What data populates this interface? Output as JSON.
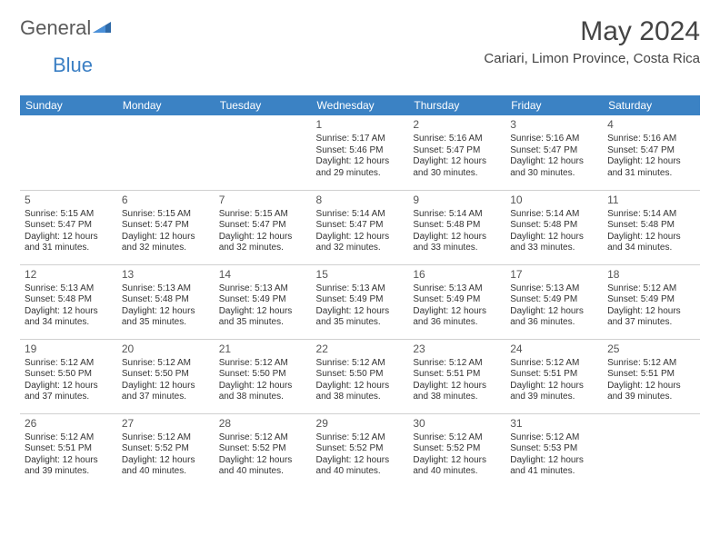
{
  "logo": {
    "text_general": "General",
    "text_blue": "Blue"
  },
  "title": "May 2024",
  "location": "Cariari, Limon Province, Costa Rica",
  "colors": {
    "header_bg": "#3b82c4",
    "header_text": "#ffffff",
    "border": "#d0d0d0",
    "logo_gray": "#5a5a5a",
    "logo_blue": "#3b7fc4"
  },
  "day_headers": [
    "Sunday",
    "Monday",
    "Tuesday",
    "Wednesday",
    "Thursday",
    "Friday",
    "Saturday"
  ],
  "weeks": [
    [
      null,
      null,
      null,
      {
        "n": "1",
        "sr": "Sunrise: 5:17 AM",
        "ss": "Sunset: 5:46 PM",
        "dl1": "Daylight: 12 hours",
        "dl2": "and 29 minutes."
      },
      {
        "n": "2",
        "sr": "Sunrise: 5:16 AM",
        "ss": "Sunset: 5:47 PM",
        "dl1": "Daylight: 12 hours",
        "dl2": "and 30 minutes."
      },
      {
        "n": "3",
        "sr": "Sunrise: 5:16 AM",
        "ss": "Sunset: 5:47 PM",
        "dl1": "Daylight: 12 hours",
        "dl2": "and 30 minutes."
      },
      {
        "n": "4",
        "sr": "Sunrise: 5:16 AM",
        "ss": "Sunset: 5:47 PM",
        "dl1": "Daylight: 12 hours",
        "dl2": "and 31 minutes."
      }
    ],
    [
      {
        "n": "5",
        "sr": "Sunrise: 5:15 AM",
        "ss": "Sunset: 5:47 PM",
        "dl1": "Daylight: 12 hours",
        "dl2": "and 31 minutes."
      },
      {
        "n": "6",
        "sr": "Sunrise: 5:15 AM",
        "ss": "Sunset: 5:47 PM",
        "dl1": "Daylight: 12 hours",
        "dl2": "and 32 minutes."
      },
      {
        "n": "7",
        "sr": "Sunrise: 5:15 AM",
        "ss": "Sunset: 5:47 PM",
        "dl1": "Daylight: 12 hours",
        "dl2": "and 32 minutes."
      },
      {
        "n": "8",
        "sr": "Sunrise: 5:14 AM",
        "ss": "Sunset: 5:47 PM",
        "dl1": "Daylight: 12 hours",
        "dl2": "and 32 minutes."
      },
      {
        "n": "9",
        "sr": "Sunrise: 5:14 AM",
        "ss": "Sunset: 5:48 PM",
        "dl1": "Daylight: 12 hours",
        "dl2": "and 33 minutes."
      },
      {
        "n": "10",
        "sr": "Sunrise: 5:14 AM",
        "ss": "Sunset: 5:48 PM",
        "dl1": "Daylight: 12 hours",
        "dl2": "and 33 minutes."
      },
      {
        "n": "11",
        "sr": "Sunrise: 5:14 AM",
        "ss": "Sunset: 5:48 PM",
        "dl1": "Daylight: 12 hours",
        "dl2": "and 34 minutes."
      }
    ],
    [
      {
        "n": "12",
        "sr": "Sunrise: 5:13 AM",
        "ss": "Sunset: 5:48 PM",
        "dl1": "Daylight: 12 hours",
        "dl2": "and 34 minutes."
      },
      {
        "n": "13",
        "sr": "Sunrise: 5:13 AM",
        "ss": "Sunset: 5:48 PM",
        "dl1": "Daylight: 12 hours",
        "dl2": "and 35 minutes."
      },
      {
        "n": "14",
        "sr": "Sunrise: 5:13 AM",
        "ss": "Sunset: 5:49 PM",
        "dl1": "Daylight: 12 hours",
        "dl2": "and 35 minutes."
      },
      {
        "n": "15",
        "sr": "Sunrise: 5:13 AM",
        "ss": "Sunset: 5:49 PM",
        "dl1": "Daylight: 12 hours",
        "dl2": "and 35 minutes."
      },
      {
        "n": "16",
        "sr": "Sunrise: 5:13 AM",
        "ss": "Sunset: 5:49 PM",
        "dl1": "Daylight: 12 hours",
        "dl2": "and 36 minutes."
      },
      {
        "n": "17",
        "sr": "Sunrise: 5:13 AM",
        "ss": "Sunset: 5:49 PM",
        "dl1": "Daylight: 12 hours",
        "dl2": "and 36 minutes."
      },
      {
        "n": "18",
        "sr": "Sunrise: 5:12 AM",
        "ss": "Sunset: 5:49 PM",
        "dl1": "Daylight: 12 hours",
        "dl2": "and 37 minutes."
      }
    ],
    [
      {
        "n": "19",
        "sr": "Sunrise: 5:12 AM",
        "ss": "Sunset: 5:50 PM",
        "dl1": "Daylight: 12 hours",
        "dl2": "and 37 minutes."
      },
      {
        "n": "20",
        "sr": "Sunrise: 5:12 AM",
        "ss": "Sunset: 5:50 PM",
        "dl1": "Daylight: 12 hours",
        "dl2": "and 37 minutes."
      },
      {
        "n": "21",
        "sr": "Sunrise: 5:12 AM",
        "ss": "Sunset: 5:50 PM",
        "dl1": "Daylight: 12 hours",
        "dl2": "and 38 minutes."
      },
      {
        "n": "22",
        "sr": "Sunrise: 5:12 AM",
        "ss": "Sunset: 5:50 PM",
        "dl1": "Daylight: 12 hours",
        "dl2": "and 38 minutes."
      },
      {
        "n": "23",
        "sr": "Sunrise: 5:12 AM",
        "ss": "Sunset: 5:51 PM",
        "dl1": "Daylight: 12 hours",
        "dl2": "and 38 minutes."
      },
      {
        "n": "24",
        "sr": "Sunrise: 5:12 AM",
        "ss": "Sunset: 5:51 PM",
        "dl1": "Daylight: 12 hours",
        "dl2": "and 39 minutes."
      },
      {
        "n": "25",
        "sr": "Sunrise: 5:12 AM",
        "ss": "Sunset: 5:51 PM",
        "dl1": "Daylight: 12 hours",
        "dl2": "and 39 minutes."
      }
    ],
    [
      {
        "n": "26",
        "sr": "Sunrise: 5:12 AM",
        "ss": "Sunset: 5:51 PM",
        "dl1": "Daylight: 12 hours",
        "dl2": "and 39 minutes."
      },
      {
        "n": "27",
        "sr": "Sunrise: 5:12 AM",
        "ss": "Sunset: 5:52 PM",
        "dl1": "Daylight: 12 hours",
        "dl2": "and 40 minutes."
      },
      {
        "n": "28",
        "sr": "Sunrise: 5:12 AM",
        "ss": "Sunset: 5:52 PM",
        "dl1": "Daylight: 12 hours",
        "dl2": "and 40 minutes."
      },
      {
        "n": "29",
        "sr": "Sunrise: 5:12 AM",
        "ss": "Sunset: 5:52 PM",
        "dl1": "Daylight: 12 hours",
        "dl2": "and 40 minutes."
      },
      {
        "n": "30",
        "sr": "Sunrise: 5:12 AM",
        "ss": "Sunset: 5:52 PM",
        "dl1": "Daylight: 12 hours",
        "dl2": "and 40 minutes."
      },
      {
        "n": "31",
        "sr": "Sunrise: 5:12 AM",
        "ss": "Sunset: 5:53 PM",
        "dl1": "Daylight: 12 hours",
        "dl2": "and 41 minutes."
      },
      null
    ]
  ]
}
